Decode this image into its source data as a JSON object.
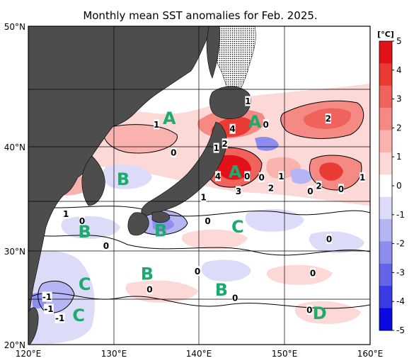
{
  "title": "Monthly mean SST anomalies for Feb. 2025.",
  "lon_ticks": [
    "120°E",
    "130°E",
    "140°E",
    "150°E",
    "160°E"
  ],
  "lat_ticks": [
    "50°N",
    "40°N",
    "30°N",
    "20°N"
  ],
  "colorbar": {
    "unit": "[°C]",
    "ticks": [
      "5",
      "4",
      "3",
      "2",
      "1",
      "0",
      "-1",
      "-2",
      "-3",
      "-4",
      "-5"
    ],
    "colors": [
      "#e2111a",
      "#ea3a34",
      "#f0635c",
      "#f58a85",
      "#f9b2ae",
      "#fcd8d6",
      "#ffffff",
      "#dcdcf8",
      "#b5b5f3",
      "#8d8dee",
      "#6464ea",
      "#3b3be6",
      "#0a0ae0"
    ]
  },
  "colors": {
    "land": "#4d4d4d",
    "ice": "#f0f0f0",
    "region_label": "#1eaa6e",
    "warm_strong": "#e2111a",
    "cold_strong": "#0a0ae0"
  },
  "region_labels": [
    {
      "text": "A",
      "lon": 136.5,
      "lat": 42.5
    },
    {
      "text": "A",
      "lon": 146.5,
      "lat": 42.2
    },
    {
      "text": "A",
      "lon": 144.2,
      "lat": 37.7
    },
    {
      "text": "B",
      "lon": 131.1,
      "lat": 37.0
    },
    {
      "text": "B",
      "lon": 126.6,
      "lat": 31.9
    },
    {
      "text": "B",
      "lon": 135.5,
      "lat": 32.0
    },
    {
      "text": "B",
      "lon": 133.9,
      "lat": 27.6
    },
    {
      "text": "B",
      "lon": 142.6,
      "lat": 25.9
    },
    {
      "text": "C",
      "lon": 144.5,
      "lat": 32.4
    },
    {
      "text": "C",
      "lon": 126.6,
      "lat": 26.5
    },
    {
      "text": "C",
      "lon": 125.9,
      "lat": 23.2
    },
    {
      "text": "D",
      "lon": 154.1,
      "lat": 23.4
    }
  ],
  "contour_labels": [
    {
      "text": "1",
      "lon": 145.7,
      "lat": 44.0
    },
    {
      "text": "1",
      "lon": 135.0,
      "lat": 42.0
    },
    {
      "text": "4",
      "lon": 143.9,
      "lat": 41.6
    },
    {
      "text": "0",
      "lon": 147.8,
      "lat": 42.0
    },
    {
      "text": "2",
      "lon": 155.1,
      "lat": 42.5
    },
    {
      "text": "2",
      "lon": 143.0,
      "lat": 40.3
    },
    {
      "text": "1",
      "lon": 142.0,
      "lat": 39.9
    },
    {
      "text": "0",
      "lon": 137.0,
      "lat": 39.5
    },
    {
      "text": "4",
      "lon": 142.2,
      "lat": 37.3
    },
    {
      "text": "3",
      "lon": 144.6,
      "lat": 35.9
    },
    {
      "text": "0",
      "lon": 145.6,
      "lat": 37.3
    },
    {
      "text": "0",
      "lon": 147.3,
      "lat": 37.2
    },
    {
      "text": "1",
      "lon": 149.6,
      "lat": 37.3
    },
    {
      "text": "2",
      "lon": 148.4,
      "lat": 36.2
    },
    {
      "text": "2",
      "lon": 154.0,
      "lat": 36.4
    },
    {
      "text": "0",
      "lon": 153.0,
      "lat": 35.9
    },
    {
      "text": "0",
      "lon": 156.6,
      "lat": 36.1
    },
    {
      "text": "1",
      "lon": 159.1,
      "lat": 37.2
    },
    {
      "text": "1",
      "lon": 140.5,
      "lat": 35.3
    },
    {
      "text": "1",
      "lon": 124.4,
      "lat": 33.7
    },
    {
      "text": "0",
      "lon": 126.3,
      "lat": 33.0
    },
    {
      "text": "0",
      "lon": 141.0,
      "lat": 33.0
    },
    {
      "text": "0",
      "lon": 129.1,
      "lat": 30.5
    },
    {
      "text": "0",
      "lon": 155.2,
      "lat": 31.2
    },
    {
      "text": "0",
      "lon": 139.8,
      "lat": 27.9
    },
    {
      "text": "0",
      "lon": 153.3,
      "lat": 27.7
    },
    {
      "text": "0",
      "lon": 134.2,
      "lat": 26.0
    },
    {
      "text": "0",
      "lon": 144.2,
      "lat": 25.1
    },
    {
      "text": "-1",
      "lon": 122.2,
      "lat": 25.2
    },
    {
      "text": "-1",
      "lon": 122.4,
      "lat": 23.9
    },
    {
      "text": "-1",
      "lon": 123.7,
      "lat": 22.9
    },
    {
      "text": "0",
      "lon": 152.9,
      "lat": 23.8
    }
  ]
}
